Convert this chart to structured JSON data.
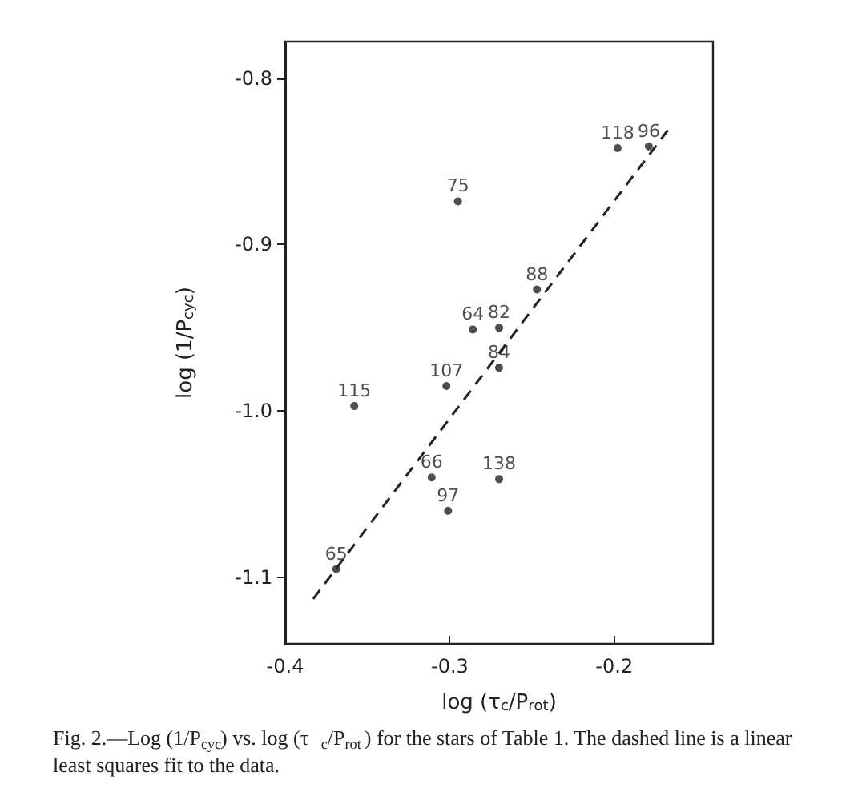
{
  "chart_data": {
    "type": "scatter",
    "xlabel": "log (τ$_{c}$/P$_{rot}$)",
    "ylabel": "log (1/P$_{cyc}$)",
    "xlim": [
      -0.4,
      -0.14
    ],
    "xticks": [
      -0.4,
      -0.3,
      -0.2
    ],
    "ylim": [
      -1.14,
      -0.778
    ],
    "yticks": [
      -1.1,
      {
        "value": -1.0,
        "label": "-1.0"
      },
      -0.9,
      -0.8
    ],
    "grid": false,
    "marker": "circle",
    "series": [
      {
        "color": "#222222",
        "x": [
          -0.179,
          -0.198,
          -0.295,
          -0.247,
          -0.286,
          -0.27,
          -0.27,
          -0.302,
          -0.358,
          -0.27,
          -0.311,
          -0.301,
          -0.369
        ],
        "values": [
          -0.841,
          -0.842,
          -0.874,
          -0.927,
          -0.951,
          -0.95,
          -0.974,
          -0.985,
          -0.997,
          -1.041,
          -1.04,
          -1.06,
          -1.095
        ]
      },
      {
        "type": "line",
        "color": "#222222",
        "marker": "none",
        "line_style": "dashed",
        "x": [
          -0.383,
          -0.165
        ],
        "values": [
          -1.113,
          -0.828
        ]
      }
    ],
    "annotations": [
      {
        "text": "96",
        "x": -0.179,
        "y": -0.841
      },
      {
        "text": "118",
        "x": -0.198,
        "y": -0.842
      },
      {
        "text": "75",
        "x": -0.295,
        "y": -0.874
      },
      {
        "text": "88",
        "x": -0.247,
        "y": -0.927
      },
      {
        "text": "64",
        "x": -0.286,
        "y": -0.951
      },
      {
        "text": "82",
        "x": -0.27,
        "y": -0.95
      },
      {
        "text": "84",
        "x": -0.27,
        "y": -0.974
      },
      {
        "text": "107",
        "x": -0.302,
        "y": -0.985
      },
      {
        "text": "115",
        "x": -0.358,
        "y": -0.997
      },
      {
        "text": "138",
        "x": -0.27,
        "y": -1.041
      },
      {
        "text": "66",
        "x": -0.311,
        "y": -1.04
      },
      {
        "text": "97",
        "x": -0.301,
        "y": -1.06
      },
      {
        "text": "65",
        "x": -0.369,
        "y": -1.095
      },
      "Fig. 2.—Log (1/P$_{cyc}$) vs. log (τ$_{c}$/P$_{rot}$) for the stars of Table 1. The dashed line is a linear least squares fit to the data."
    ]
  }
}
